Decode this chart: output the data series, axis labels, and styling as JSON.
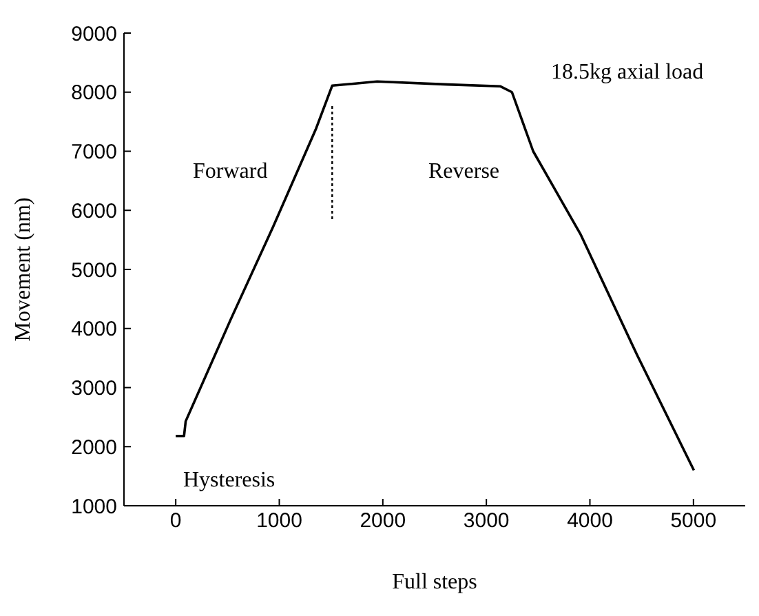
{
  "chart_data": {
    "type": "line",
    "xlabel": "Full steps",
    "ylabel": "Movement (nm)",
    "xlim": [
      -500,
      5500
    ],
    "xticks": [
      0,
      1000,
      2000,
      3000,
      4000,
      5000
    ],
    "ylim": [
      1000,
      9000
    ],
    "yticks": [
      1000,
      2000,
      3000,
      4000,
      5000,
      6000,
      7000,
      8000,
      9000
    ],
    "marker": "none",
    "series": [
      {
        "color": "#000000",
        "line_style": "solid",
        "x": [
          0,
          80,
          96,
          530,
          940,
          1352,
          1511,
          1945,
          2630,
          3133,
          3247,
          3452,
          3908,
          4456,
          5004
        ],
        "values": [
          2180,
          2180,
          2430,
          4150,
          5720,
          7370,
          8110,
          8180,
          8130,
          8100,
          8000,
          7000,
          5600,
          3550,
          1600
        ]
      },
      {
        "color": "#000000",
        "line_style": "dotted",
        "x": [
          1511,
          1511
        ],
        "values": [
          5850,
          7800
        ]
      }
    ],
    "annotations": [
      "Forward",
      "Reverse",
      "Hysteresis",
      "18.5kg axial load"
    ]
  }
}
